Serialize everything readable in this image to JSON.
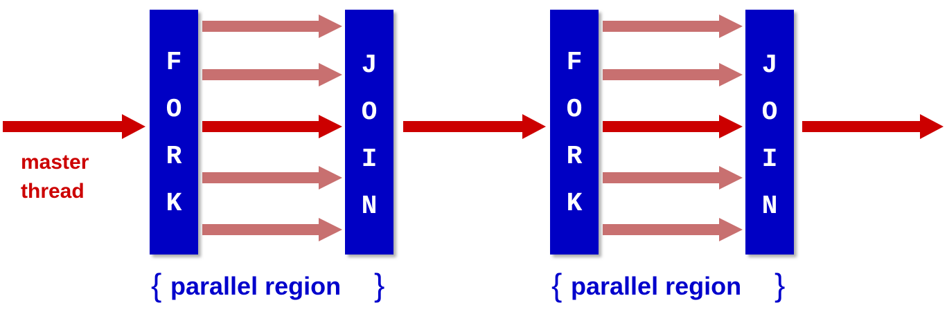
{
  "master_label": [
    "master",
    "thread"
  ],
  "regions": [
    {
      "fork_letters": [
        "F",
        "O",
        "R",
        "K"
      ],
      "join_letters": [
        "J",
        "O",
        "I",
        "N"
      ],
      "label": "parallel region",
      "brace_open": "{",
      "brace_close": "}"
    },
    {
      "fork_letters": [
        "F",
        "O",
        "R",
        "K"
      ],
      "join_letters": [
        "J",
        "O",
        "I",
        "N"
      ],
      "label": "parallel region",
      "brace_open": "{",
      "brace_close": "}"
    }
  ],
  "colors": {
    "box": "#0000c4",
    "box_shadow": "#9a9a9a",
    "master_arrow": "#cc0000",
    "thread_arrow": "#c87070",
    "label_red": "#cc0000",
    "label_blue": "#0000cc"
  }
}
